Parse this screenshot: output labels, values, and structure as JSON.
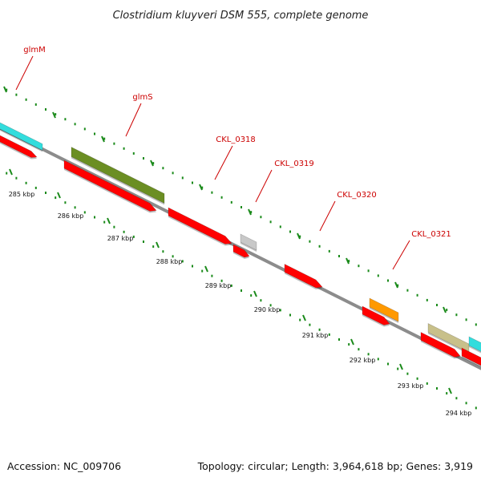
{
  "title": "Clostridium kluyveri DSM 555, complete genome",
  "footer": {
    "accession": "Accession: NC_009706",
    "summary": "Topology: circular; Length: 3,964,618 bp; Genes: 3,919"
  },
  "colors": {
    "background": "#ffffff",
    "backbone": "#8c8c8c",
    "tick": "#1a8a1a",
    "label": "#cc0000",
    "cds": "#ff0000",
    "cyan": "#33dddd",
    "olive": "#6b8e23",
    "gray": "#c8c8c8",
    "orange": "#ff9900",
    "khaki": "#c8c08a"
  },
  "scale": {
    "ticks": [
      {
        "label": "285 kbp"
      },
      {
        "label": "286 kbp"
      },
      {
        "label": "287 kbp"
      },
      {
        "label": "288 kbp"
      },
      {
        "label": "289 kbp"
      },
      {
        "label": "290 kbp"
      },
      {
        "label": "291 kbp"
      },
      {
        "label": "292 kbp"
      },
      {
        "label": "293 kbp"
      },
      {
        "label": "294 kbp"
      }
    ]
  },
  "genes": [
    {
      "name": "glmM",
      "color": "cyan",
      "label": "glmM"
    },
    {
      "name": "glmM-cds",
      "color": "cds"
    },
    {
      "name": "glmS",
      "color": "olive",
      "label": "glmS"
    },
    {
      "name": "glmS-cds",
      "color": "cds"
    },
    {
      "name": "CKL_0318",
      "color": "cds",
      "label": "CKL_0318"
    },
    {
      "name": "CKL_0319",
      "color": "gray",
      "label": "CKL_0319"
    },
    {
      "name": "CKL_0319-cds",
      "color": "cds"
    },
    {
      "name": "CKL_0320",
      "color": "cds",
      "label": "CKL_0320"
    },
    {
      "name": "CKL_0321",
      "color": "orange",
      "label": "CKL_0321"
    },
    {
      "name": "CKL_0321-cds",
      "color": "cds"
    },
    {
      "name": "khaki-feature",
      "color": "khaki"
    },
    {
      "name": "khaki-cds",
      "color": "cds"
    },
    {
      "name": "edge-cyan-feature",
      "color": "cyan"
    },
    {
      "name": "edge-cds",
      "color": "cds"
    }
  ]
}
